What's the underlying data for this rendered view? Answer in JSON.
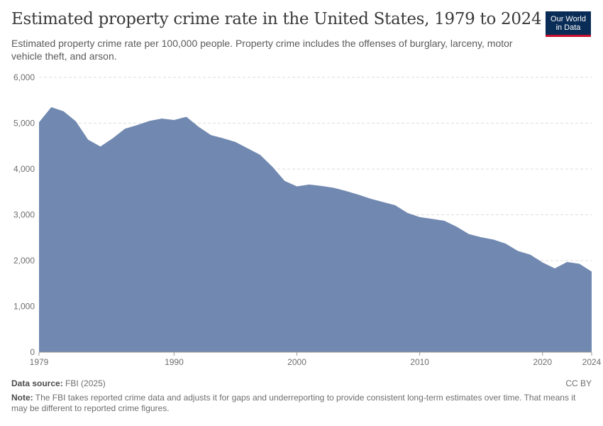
{
  "header": {
    "title": "Estimated property crime rate in the United States, 1979 to 2024",
    "subtitle": "Estimated property crime rate per 100,000 people. Property crime includes the offenses of burglary, larceny, motor vehicle theft, and arson.",
    "logo_line1": "Our World",
    "logo_line2": "in Data"
  },
  "footer": {
    "source_label": "Data source:",
    "source_value": "FBI (2025)",
    "note_label": "Note:",
    "note_value": "The FBI takes reported crime data and adjusts it for gaps and underreporting to provide consistent long-term estimates over time. That means it may be different to reported crime figures.",
    "license": "CC BY"
  },
  "colors": {
    "area": "#7189b0",
    "grid": "#dddddd"
  },
  "chart_data": {
    "type": "area",
    "ylim": [
      0,
      6000
    ],
    "xlim": [
      1979,
      2024
    ],
    "y_ticks": [
      0,
      1000,
      2000,
      3000,
      4000,
      5000,
      6000
    ],
    "y_tick_labels": [
      "0",
      "1,000",
      "2,000",
      "3,000",
      "4,000",
      "5,000",
      "6,000"
    ],
    "x_ticks": [
      1979,
      1990,
      2000,
      2010,
      2020,
      2024
    ],
    "x_tick_labels": [
      "1979",
      "1990",
      "2000",
      "2010",
      "2020",
      "2024"
    ],
    "grid": true,
    "series": [
      {
        "x": [
          1979,
          1980,
          1981,
          1982,
          1983,
          1984,
          1985,
          1986,
          1987,
          1988,
          1989,
          1990,
          1991,
          1992,
          1993,
          1994,
          1995,
          1996,
          1997,
          1998,
          1999,
          2000,
          2001,
          2002,
          2003,
          2004,
          2005,
          2006,
          2007,
          2008,
          2009,
          2010,
          2011,
          2012,
          2013,
          2014,
          2015,
          2016,
          2017,
          2018,
          2019,
          2020,
          2021,
          2022,
          2023,
          2024
        ],
        "values": [
          5020,
          5350,
          5260,
          5040,
          4640,
          4490,
          4670,
          4880,
          4960,
          5050,
          5100,
          5070,
          5140,
          4920,
          4740,
          4670,
          4590,
          4450,
          4310,
          4050,
          3740,
          3620,
          3660,
          3630,
          3590,
          3520,
          3440,
          3350,
          3280,
          3210,
          3040,
          2950,
          2910,
          2870,
          2740,
          2580,
          2510,
          2460,
          2370,
          2210,
          2130,
          1960,
          1830,
          1970,
          1930,
          1760
        ]
      }
    ]
  }
}
